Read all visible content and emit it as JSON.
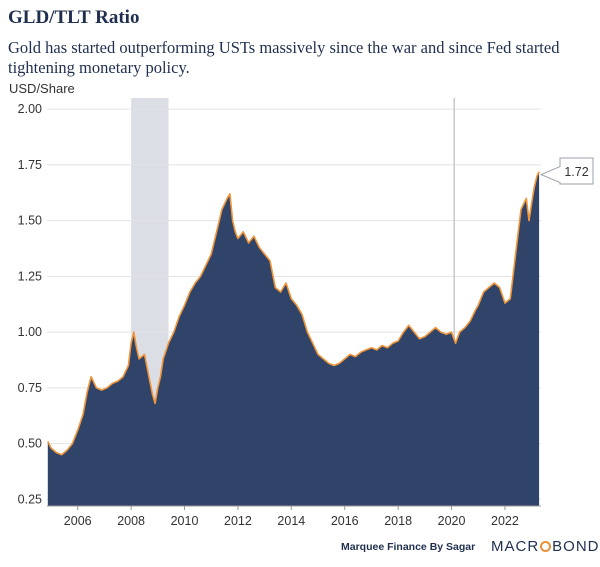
{
  "title": "GLD/TLT Ratio",
  "subtitle": "Gold has started outperforming USTs massively since the war and since Fed started tightening monetary policy.",
  "source": "Marquee Finance By Sagar",
  "brand": {
    "left": "MACR",
    "right": "BOND",
    "accent": "#e8913a"
  },
  "colors": {
    "area": "#2f4468",
    "line": "#f0953a",
    "shade": "#dcdee6",
    "grid": "#e3e3e3"
  },
  "chart_data": {
    "type": "area",
    "ylabel": "USD/Share",
    "ylim": [
      0.22,
      2.05
    ],
    "xlim": [
      2004.85,
      2023.35
    ],
    "yticks": [
      "2.00",
      "1.75",
      "1.50",
      "1.25",
      "1.00",
      "0.75",
      "0.50",
      "0.25"
    ],
    "xticks": [
      "2006",
      "2008",
      "2010",
      "2012",
      "2014",
      "2016",
      "2018",
      "2020",
      "2022"
    ],
    "last_value_label": "1.72",
    "shaded_period": [
      2008.0,
      2009.4
    ],
    "vertical_marker": 2020.1,
    "series": [
      {
        "x": [
          2004.88,
          2005.0,
          2005.2,
          2005.4,
          2005.6,
          2005.8,
          2006.0,
          2006.2,
          2006.35,
          2006.5,
          2006.7,
          2006.9,
          2007.1,
          2007.3,
          2007.5,
          2007.7,
          2007.9,
          2008.0,
          2008.1,
          2008.2,
          2008.3,
          2008.5,
          2008.7,
          2008.8,
          2008.9,
          2009.0,
          2009.1,
          2009.2,
          2009.4,
          2009.6,
          2009.8,
          2010.0,
          2010.2,
          2010.4,
          2010.6,
          2010.8,
          2011.0,
          2011.2,
          2011.4,
          2011.6,
          2011.7,
          2011.8,
          2011.9,
          2012.0,
          2012.2,
          2012.4,
          2012.6,
          2012.8,
          2013.0,
          2013.2,
          2013.4,
          2013.6,
          2013.8,
          2014.0,
          2014.2,
          2014.4,
          2014.6,
          2014.8,
          2015.0,
          2015.2,
          2015.4,
          2015.6,
          2015.8,
          2016.0,
          2016.2,
          2016.4,
          2016.6,
          2016.8,
          2017.0,
          2017.2,
          2017.4,
          2017.6,
          2017.8,
          2018.0,
          2018.2,
          2018.4,
          2018.6,
          2018.8,
          2019.0,
          2019.2,
          2019.4,
          2019.6,
          2019.8,
          2020.0,
          2020.15,
          2020.3,
          2020.5,
          2020.7,
          2020.9,
          2021.0,
          2021.2,
          2021.4,
          2021.6,
          2021.8,
          2022.0,
          2022.2,
          2022.4,
          2022.6,
          2022.8,
          2022.9,
          2023.0,
          2023.1,
          2023.2,
          2023.28
        ],
        "values": [
          0.51,
          0.48,
          0.46,
          0.45,
          0.47,
          0.5,
          0.56,
          0.63,
          0.73,
          0.8,
          0.75,
          0.74,
          0.75,
          0.77,
          0.78,
          0.8,
          0.85,
          0.95,
          1.0,
          0.93,
          0.88,
          0.9,
          0.78,
          0.72,
          0.68,
          0.75,
          0.8,
          0.88,
          0.95,
          1.0,
          1.07,
          1.12,
          1.18,
          1.22,
          1.25,
          1.3,
          1.35,
          1.45,
          1.55,
          1.6,
          1.62,
          1.5,
          1.45,
          1.42,
          1.45,
          1.4,
          1.43,
          1.38,
          1.35,
          1.32,
          1.2,
          1.18,
          1.22,
          1.15,
          1.12,
          1.08,
          1.0,
          0.95,
          0.9,
          0.88,
          0.86,
          0.85,
          0.86,
          0.88,
          0.9,
          0.89,
          0.91,
          0.92,
          0.93,
          0.92,
          0.94,
          0.93,
          0.95,
          0.96,
          1.0,
          1.03,
          1.0,
          0.97,
          0.98,
          1.0,
          1.02,
          1.0,
          0.99,
          1.0,
          0.95,
          1.0,
          1.02,
          1.05,
          1.1,
          1.12,
          1.18,
          1.2,
          1.22,
          1.2,
          1.13,
          1.15,
          1.35,
          1.55,
          1.6,
          1.5,
          1.58,
          1.65,
          1.7,
          1.72
        ]
      }
    ]
  }
}
